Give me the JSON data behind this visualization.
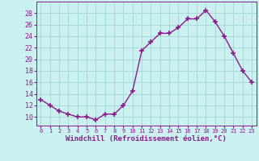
{
  "x": [
    0,
    1,
    2,
    3,
    4,
    5,
    6,
    7,
    8,
    9,
    10,
    11,
    12,
    13,
    14,
    15,
    16,
    17,
    18,
    19,
    20,
    21,
    22,
    23
  ],
  "y": [
    13,
    12,
    11,
    10.5,
    10,
    10,
    9.5,
    10.5,
    10.5,
    12,
    14.5,
    21.5,
    23,
    24.5,
    24.5,
    25.5,
    27,
    27,
    28.5,
    26.5,
    24,
    21,
    18,
    16
  ],
  "line_color": "#8b1a8b",
  "marker": "+",
  "marker_size": 4,
  "marker_lw": 1.2,
  "line_width": 1.0,
  "bg_color": "#caf0f0",
  "grid_color": "#a8d8d8",
  "xlabel": "Windchill (Refroidissement éolien,°C)",
  "xlim": [
    -0.5,
    23.5
  ],
  "ylim": [
    8.5,
    30
  ],
  "yticks": [
    10,
    12,
    14,
    16,
    18,
    20,
    22,
    24,
    26,
    28
  ],
  "xticks": [
    0,
    1,
    2,
    3,
    4,
    5,
    6,
    7,
    8,
    9,
    10,
    11,
    12,
    13,
    14,
    15,
    16,
    17,
    18,
    19,
    20,
    21,
    22,
    23
  ],
  "tick_color": "#8b1a8b",
  "font_family": "monospace",
  "xlabel_fontsize": 6.5,
  "xlabel_fontweight": "bold",
  "xtick_fontsize": 5.0,
  "ytick_fontsize": 6.0
}
